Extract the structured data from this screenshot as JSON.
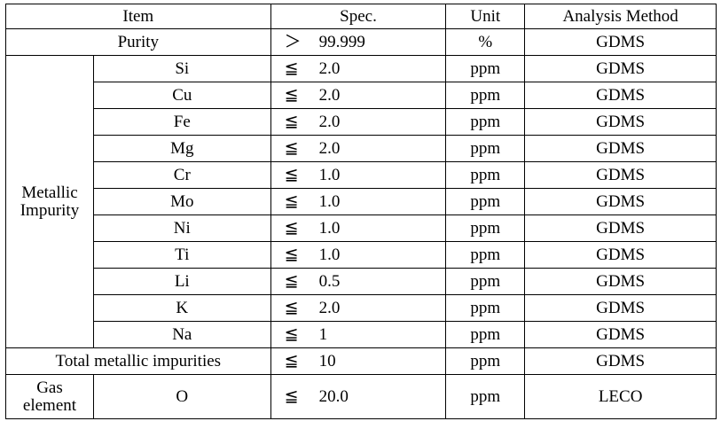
{
  "headers": {
    "item": "Item",
    "spec": "Spec.",
    "unit": "Unit",
    "method": "Analysis Method"
  },
  "purity": {
    "label": "Purity",
    "op": "＞",
    "value": "99.999",
    "unit": "%",
    "method": "GDMS"
  },
  "metallic_group": {
    "line1": "Metallic",
    "line2": "Impurity"
  },
  "impurities": [
    {
      "element": "Si",
      "op": "≦",
      "value": "2.0",
      "unit": "ppm",
      "method": "GDMS"
    },
    {
      "element": "Cu",
      "op": "≦",
      "value": "2.0",
      "unit": "ppm",
      "method": "GDMS"
    },
    {
      "element": "Fe",
      "op": "≦",
      "value": "2.0",
      "unit": "ppm",
      "method": "GDMS"
    },
    {
      "element": "Mg",
      "op": "≦",
      "value": "2.0",
      "unit": "ppm",
      "method": "GDMS"
    },
    {
      "element": "Cr",
      "op": "≦",
      "value": "1.0",
      "unit": "ppm",
      "method": "GDMS"
    },
    {
      "element": "Mo",
      "op": "≦",
      "value": "1.0",
      "unit": "ppm",
      "method": "GDMS"
    },
    {
      "element": "Ni",
      "op": "≦",
      "value": "1.0",
      "unit": "ppm",
      "method": "GDMS"
    },
    {
      "element": "Ti",
      "op": "≦",
      "value": "1.0",
      "unit": "ppm",
      "method": "GDMS"
    },
    {
      "element": "Li",
      "op": "≦",
      "value": "0.5",
      "unit": "ppm",
      "method": "GDMS"
    },
    {
      "element": "K",
      "op": "≦",
      "value": "2.0",
      "unit": "ppm",
      "method": "GDMS"
    },
    {
      "element": "Na",
      "op": "≦",
      "value": "1",
      "unit": "ppm",
      "method": "GDMS"
    }
  ],
  "total": {
    "label": "Total metallic impurities",
    "op": "≦",
    "value": "10",
    "unit": "ppm",
    "method": "GDMS"
  },
  "gas_group": {
    "line1": "Gas",
    "line2": "element"
  },
  "gas": {
    "element": "O",
    "op": "≦",
    "value": "20.0",
    "unit": "ppm",
    "method": "LECO"
  }
}
